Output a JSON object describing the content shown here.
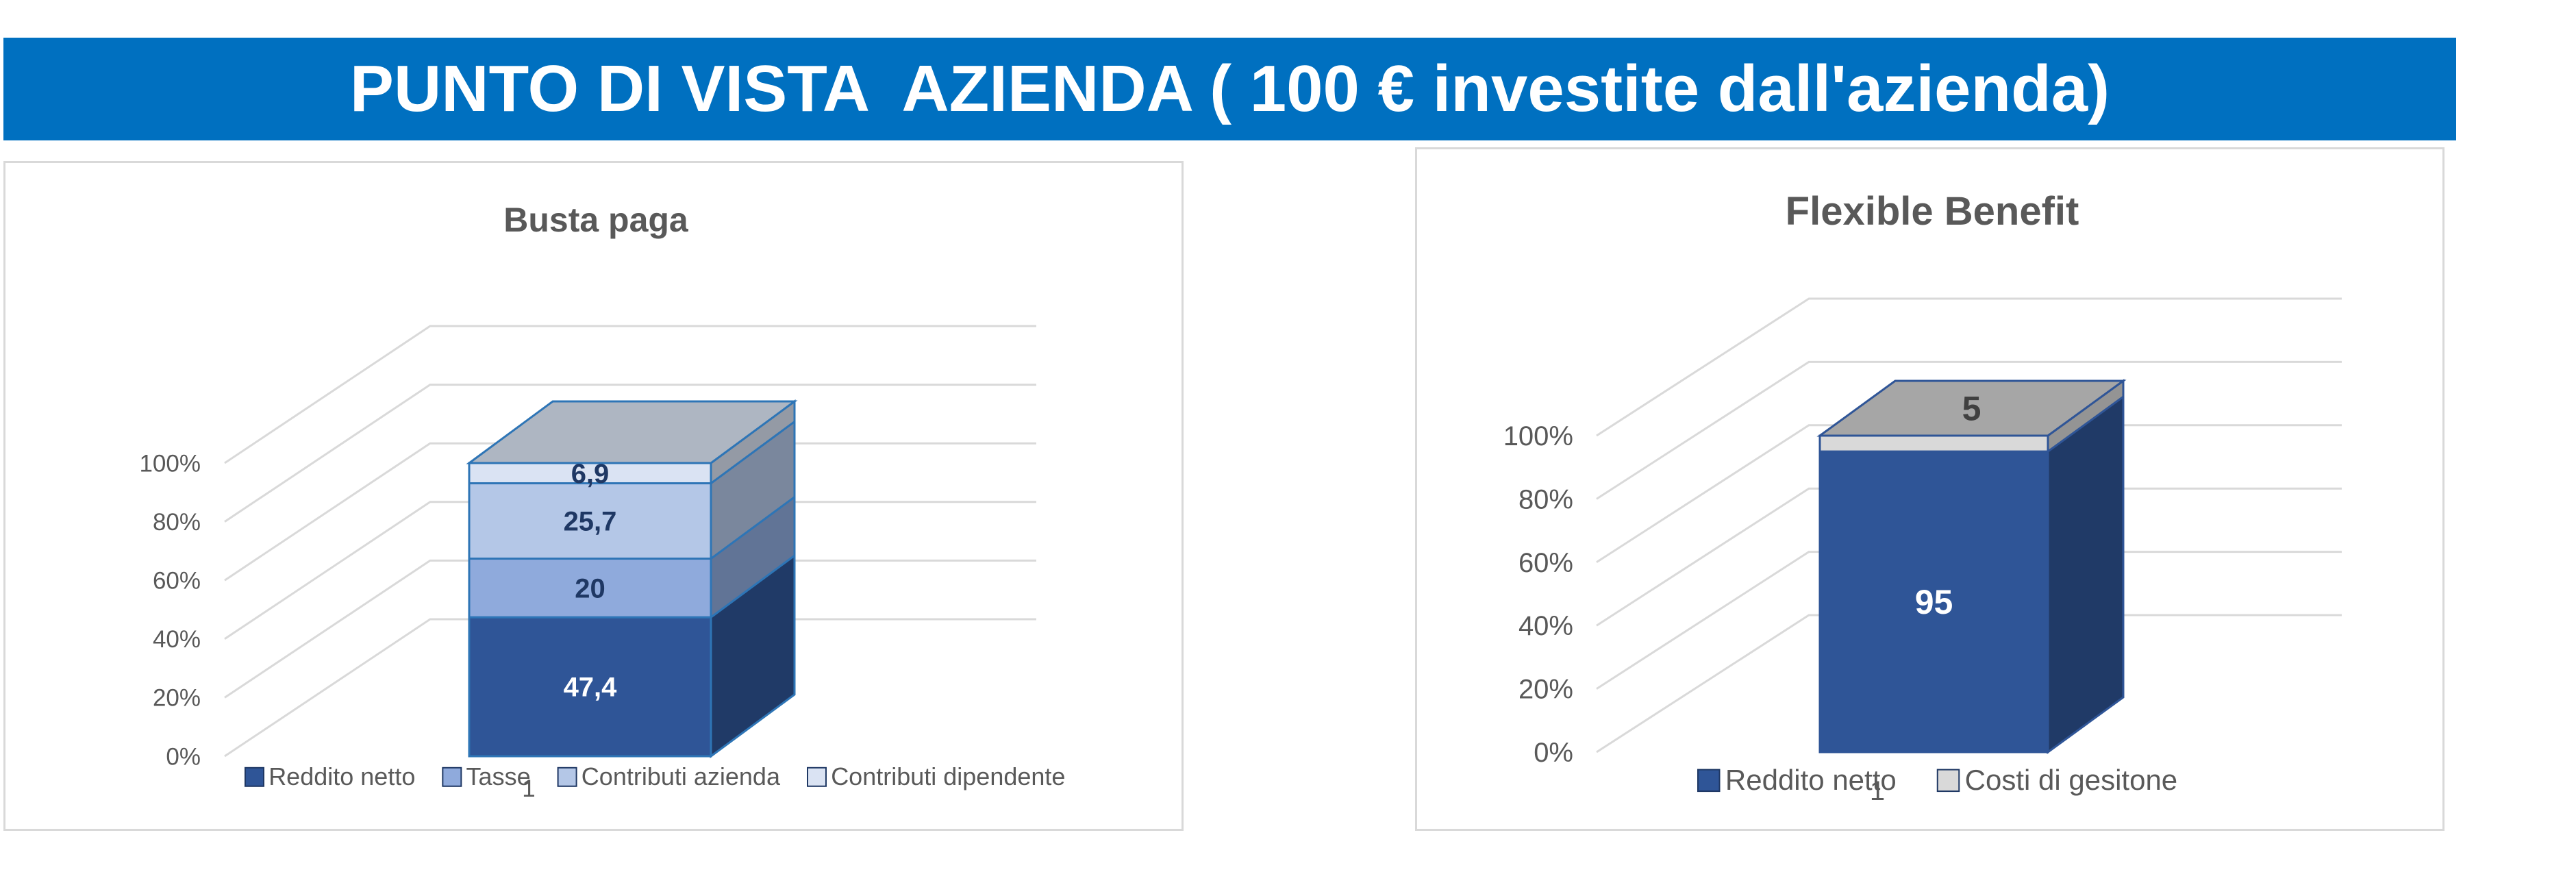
{
  "banner": {
    "title": "PUNTO DI VISTA  AZIENDA ( 100 € investite dall'azienda)",
    "background": "#0070c0"
  },
  "chart_data": [
    {
      "type": "bar",
      "stacked": true,
      "three_d": true,
      "title": "Busta paga",
      "categories": [
        "1"
      ],
      "ylim": [
        0,
        100
      ],
      "y_ticks": [
        "0%",
        "20%",
        "40%",
        "60%",
        "80%",
        "100%"
      ],
      "grid": true,
      "legend_position": "bottom",
      "series": [
        {
          "name": "Reddito netto",
          "values": [
            47.4
          ],
          "label": "47,4",
          "color": "#2f5597"
        },
        {
          "name": "Tasse",
          "values": [
            20
          ],
          "label": "20",
          "color": "#8faadc"
        },
        {
          "name": "Contributi azienda",
          "values": [
            25.7
          ],
          "label": "25,7",
          "color": "#b4c7e7"
        },
        {
          "name": "Contributi dipendente",
          "values": [
            6.9
          ],
          "label": "6,9",
          "color": "#dae3f3"
        }
      ]
    },
    {
      "type": "bar",
      "stacked": true,
      "three_d": true,
      "title": "Flexible Benefit",
      "categories": [
        "1"
      ],
      "ylim": [
        0,
        100
      ],
      "y_ticks": [
        "0%",
        "20%",
        "40%",
        "60%",
        "80%",
        "100%"
      ],
      "grid": true,
      "legend_position": "bottom",
      "series": [
        {
          "name": "Reddito netto",
          "values": [
            95
          ],
          "label": "95",
          "color": "#2f5597"
        },
        {
          "name": "Costi di gesitone",
          "values": [
            5
          ],
          "label": "5",
          "color": "#d9d9d9"
        }
      ]
    }
  ]
}
